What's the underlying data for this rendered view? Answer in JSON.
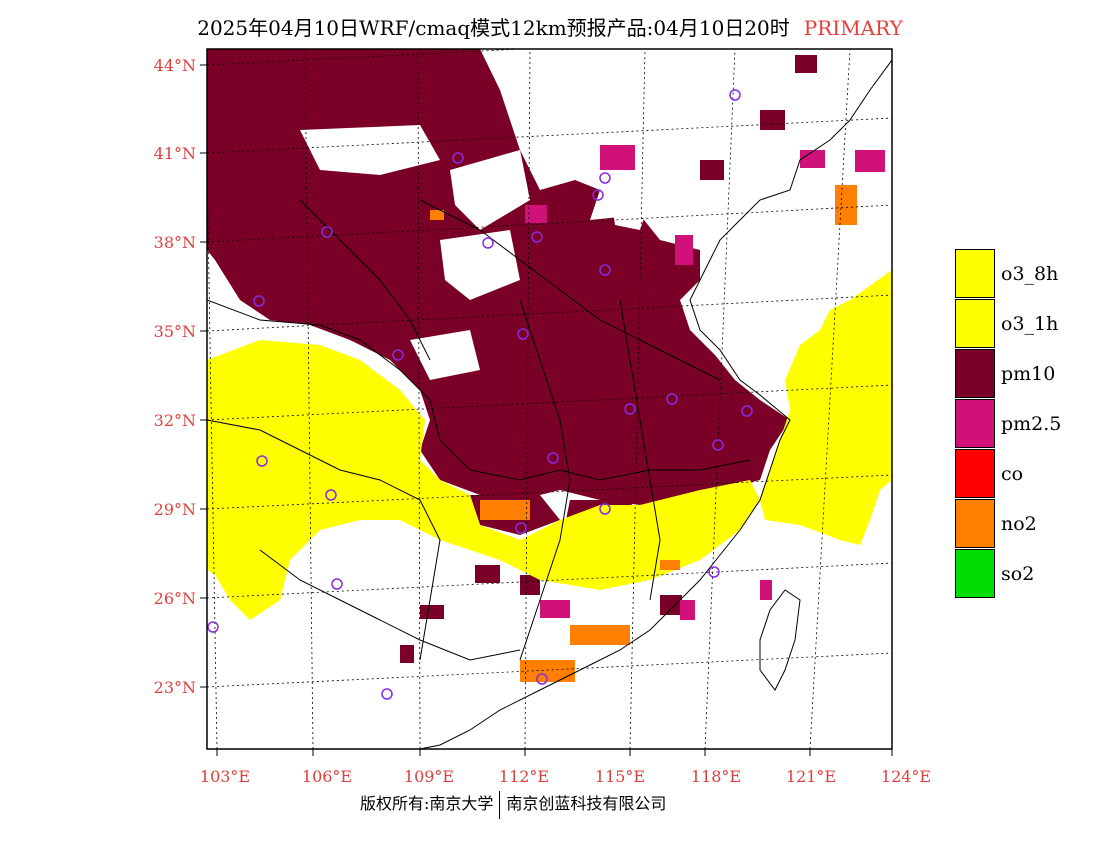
{
  "header": {
    "title": "2025年04月10日WRF/cmaq模式12km预报产品:04月10日20时",
    "primary_label": "PRIMARY"
  },
  "axes": {
    "lat_labels": [
      "44°N",
      "41°N",
      "38°N",
      "35°N",
      "32°N",
      "29°N",
      "26°N",
      "23°N"
    ],
    "lon_labels": [
      "103°E",
      "106°E",
      "109°E",
      "112°E",
      "115°E",
      "118°E",
      "121°E",
      "124°E"
    ]
  },
  "legend": {
    "items": [
      {
        "label": "o3_8h",
        "color": "#ffff00"
      },
      {
        "label": "o3_1h",
        "color": "#ffff00"
      },
      {
        "label": "pm10",
        "color": "#7a0027"
      },
      {
        "label": "pm2.5",
        "color": "#d0117a"
      },
      {
        "label": "co",
        "color": "#ff0000"
      },
      {
        "label": "no2",
        "color": "#ff7f00"
      },
      {
        "label": "so2",
        "color": "#00dd00"
      }
    ]
  },
  "colors": {
    "pm10": "#7a0027",
    "pm25": "#d0117a",
    "o3": "#ffff00",
    "no2": "#ff7f00",
    "station_ring": "#8a2be2",
    "axis_label": "#e0403c"
  },
  "footer": {
    "left": "版权所有:南京大学",
    "right": "南京创蓝科技有限公司"
  }
}
